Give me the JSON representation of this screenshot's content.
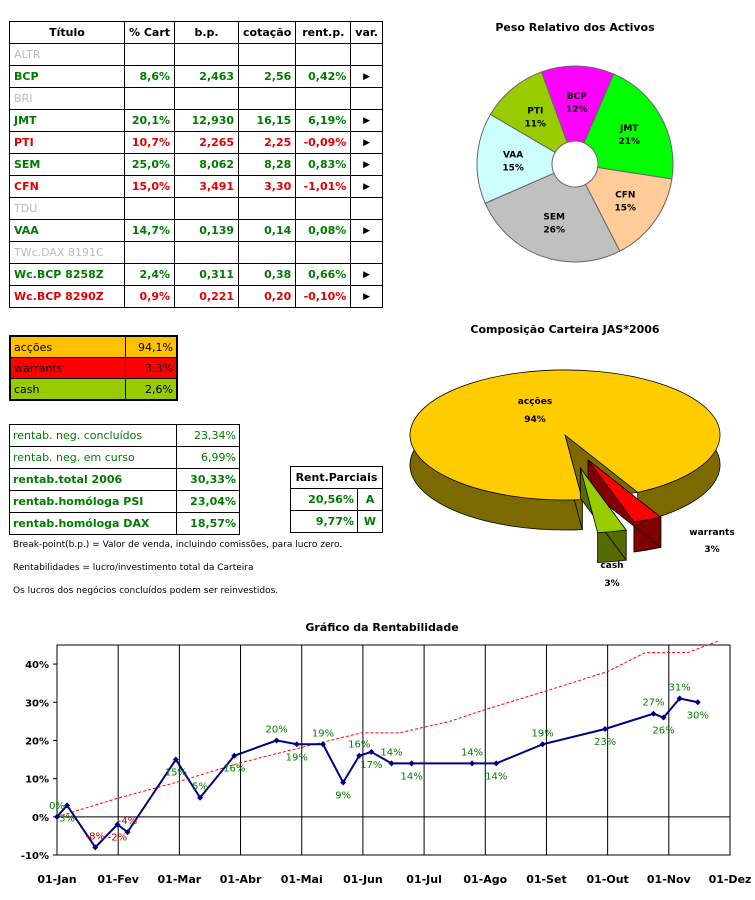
{
  "table": {
    "headers": [
      "Título",
      "% Cart",
      "b.p.",
      "cotação",
      "rent.p.",
      "var."
    ],
    "rows": [
      {
        "name": "ALTR",
        "pct": "",
        "bp": "",
        "cot": "",
        "rent": "",
        "var": "",
        "color": "inactive"
      },
      {
        "name": "BCP",
        "pct": "8,6%",
        "bp": "2,463",
        "cot": "2,56",
        "rent": "0,42%",
        "var": "▶",
        "color": "green"
      },
      {
        "name": "BRI",
        "pct": "",
        "bp": "",
        "cot": "",
        "rent": "",
        "var": "",
        "color": "inactive"
      },
      {
        "name": "JMT",
        "pct": "20,1%",
        "bp": "12,930",
        "cot": "16,15",
        "rent": "6,19%",
        "var": "▶",
        "color": "green"
      },
      {
        "name": "PTI",
        "pct": "10,7%",
        "bp": "2,265",
        "cot": "2,25",
        "rent": "-0,09%",
        "var": "▶",
        "color": "red"
      },
      {
        "name": "SEM",
        "pct": "25,0%",
        "bp": "8,062",
        "cot": "8,28",
        "rent": "0,83%",
        "var": "▶",
        "color": "green"
      },
      {
        "name": "CFN",
        "pct": "15,0%",
        "bp": "3,491",
        "cot": "3,30",
        "rent": "-1,01%",
        "var": "▶",
        "color": "red"
      },
      {
        "name": "TDU",
        "pct": "",
        "bp": "",
        "cot": "",
        "rent": "",
        "var": "",
        "color": "inactive"
      },
      {
        "name": "VAA",
        "pct": "14,7%",
        "bp": "0,139",
        "cot": "0,14",
        "rent": "0,08%",
        "var": "▶",
        "color": "green"
      },
      {
        "name": "TWc.DAX 8191C",
        "pct": "",
        "bp": "",
        "cot": "",
        "rent": "",
        "var": "",
        "color": "inactive"
      },
      {
        "name": "Wc.BCP 8258Z",
        "pct": "2,4%",
        "bp": "0,311",
        "cot": "0,38",
        "rent": "0,66%",
        "var": "▶",
        "color": "green"
      },
      {
        "name": "Wc.BCP 8290Z",
        "pct": "0,9%",
        "bp": "0,221",
        "cot": "0,20",
        "rent": "-0,10%",
        "var": "▶",
        "color": "red"
      }
    ]
  },
  "allocation": [
    {
      "label": "acções",
      "value": "94,1%",
      "color": "#ffc000"
    },
    {
      "label": "warrants",
      "value": "3,3%",
      "color": "#ff0000"
    },
    {
      "label": "cash",
      "value": "2,6%",
      "color": "#99cc00"
    }
  ],
  "rentab": [
    {
      "label": "rentab. neg. concluídos",
      "value": "23,34%",
      "bold": false
    },
    {
      "label": "rentab. neg. em curso",
      "value": "6,99%",
      "bold": false
    },
    {
      "label": "rentab.total 2006",
      "value": "30,33%",
      "bold": true
    },
    {
      "label": "rentab.homóloga PSI",
      "value": "23,04%",
      "bold": true
    },
    {
      "label": "rentab.homóloga DAX",
      "value": "18,57%",
      "bold": true
    }
  ],
  "parciais": {
    "header": "Rent.Parciais",
    "rows": [
      {
        "value": "20,56%",
        "tag": "A"
      },
      {
        "value": "9,77%",
        "tag": "W"
      }
    ]
  },
  "notes": [
    "Break-point(b.p.) = Valor de venda, incluindo comissões, para lucro zero.",
    "Rentabilidades = lucro/investimento total da Carteira",
    "Os lucros dos negócios concluídos podem ser reinvestidos."
  ],
  "chart_data": [
    {
      "type": "pie",
      "title": "Peso Relativo dos Activos",
      "donut": true,
      "categories": [
        "BCP",
        "JMT",
        "CFN",
        "SEM",
        "VAA",
        "PTI"
      ],
      "values": [
        12,
        21,
        15,
        26,
        15,
        11
      ],
      "labels": [
        "12%",
        "21%",
        "15%",
        "26%",
        "15%",
        "11%"
      ],
      "colors": [
        "#ff00ff",
        "#00ff00",
        "#ffcc99",
        "#c0c0c0",
        "#ccffff",
        "#99cc00"
      ]
    },
    {
      "type": "pie",
      "title": "Composição Carteira JAS*2006",
      "style": "3d-exploded",
      "categories": [
        "acções",
        "warrants",
        "cash"
      ],
      "values": [
        94,
        3,
        3
      ],
      "labels": [
        "94%",
        "3%",
        "3%"
      ],
      "colors": [
        "#ffcc00",
        "#ff0000",
        "#99cc00"
      ]
    },
    {
      "type": "line",
      "title": "Gráfico da Rentabilidade",
      "xticks": [
        "01-Jan",
        "01-Fev",
        "01-Mar",
        "01-Abr",
        "01-Mai",
        "01-Jun",
        "01-Jul",
        "01-Ago",
        "01-Set",
        "01-Out",
        "01-Nov",
        "01-Dez"
      ],
      "yticks": [
        "-10%",
        "0%",
        "10%",
        "20%",
        "30%",
        "40%"
      ],
      "ylim": [
        -10,
        45
      ],
      "series": [
        {
          "values": [
            {
              "x": "2006-01-01",
              "y": 0,
              "label": "0%"
            },
            {
              "x": "2006-01-06",
              "y": 3,
              "label": "3%"
            },
            {
              "x": "2006-01-20",
              "y": -8,
              "label": "-8%"
            },
            {
              "x": "2006-01-31",
              "y": -2,
              "label": "-2%"
            },
            {
              "x": "2006-02-05",
              "y": -4,
              "label": "-4%"
            },
            {
              "x": "2006-03-01",
              "y": 15,
              "label": "15%"
            },
            {
              "x": "2006-03-13",
              "y": 5,
              "label": "5%"
            },
            {
              "x": "2006-03-30",
              "y": 16,
              "label": "16%"
            },
            {
              "x": "2006-04-20",
              "y": 20,
              "label": "20%"
            },
            {
              "x": "2006-04-30",
              "y": 19,
              "label": "19%"
            },
            {
              "x": "2006-05-13",
              "y": 19,
              "label": "19%"
            },
            {
              "x": "2006-05-23",
              "y": 9,
              "label": "9%"
            },
            {
              "x": "2006-05-31",
              "y": 16,
              "label": "16%"
            },
            {
              "x": "2006-06-06",
              "y": 17,
              "label": "17%"
            },
            {
              "x": "2006-06-16",
              "y": 14,
              "label": "14%"
            },
            {
              "x": "2006-06-26",
              "y": 14,
              "label": "14%"
            },
            {
              "x": "2006-07-26",
              "y": 14,
              "label": "14%"
            },
            {
              "x": "2006-08-07",
              "y": 14,
              "label": "14%"
            },
            {
              "x": "2006-08-30",
              "y": 19,
              "label": "19%"
            },
            {
              "x": "2006-09-30",
              "y": 23,
              "label": "23%"
            },
            {
              "x": "2006-10-24",
              "y": 27,
              "label": "27%"
            },
            {
              "x": "2006-10-29",
              "y": 26,
              "label": "26%"
            },
            {
              "x": "2006-11-06",
              "y": 31,
              "label": "31%"
            },
            {
              "x": "2006-11-15",
              "y": 30,
              "label": "30%"
            }
          ],
          "color": "#000080"
        },
        {
          "values": [
            {
              "x": "2006-01-01",
              "y": 0
            },
            {
              "x": "2006-02-01",
              "y": 5
            },
            {
              "x": "2006-03-01",
              "y": 9
            },
            {
              "x": "2006-04-01",
              "y": 14
            },
            {
              "x": "2006-05-01",
              "y": 18
            },
            {
              "x": "2006-06-01",
              "y": 22
            },
            {
              "x": "2006-06-20",
              "y": 22
            },
            {
              "x": "2006-07-15",
              "y": 25
            },
            {
              "x": "2006-08-01",
              "y": 28
            },
            {
              "x": "2006-09-01",
              "y": 33
            },
            {
              "x": "2006-10-01",
              "y": 38
            },
            {
              "x": "2006-10-20",
              "y": 43
            },
            {
              "x": "2006-11-10",
              "y": 43
            },
            {
              "x": "2006-11-25",
              "y": 46
            }
          ],
          "color": "#ff0000",
          "dashed": true
        }
      ]
    }
  ]
}
